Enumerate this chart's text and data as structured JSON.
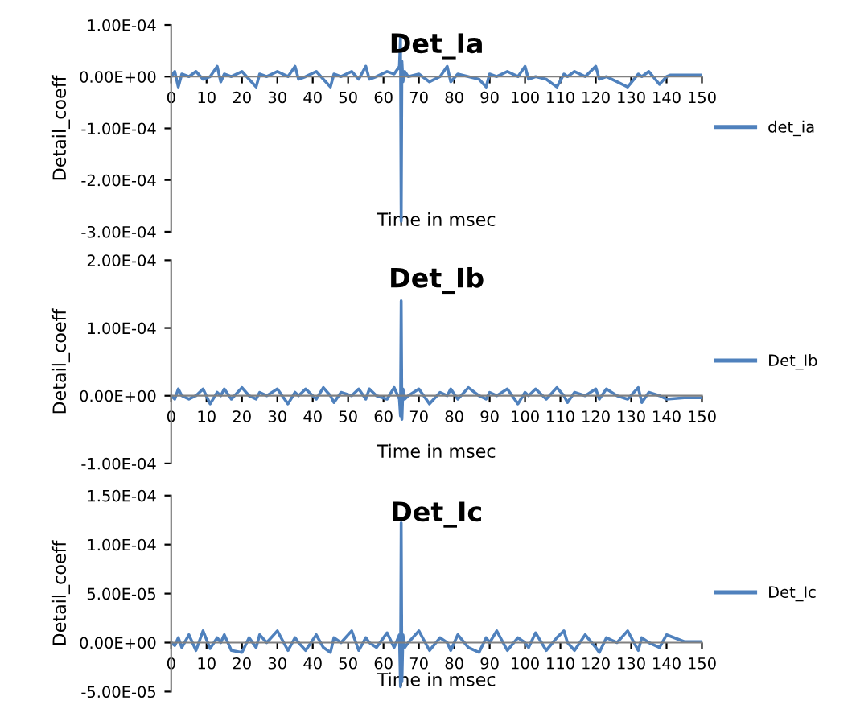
{
  "chart_data": [
    {
      "type": "line",
      "title": "Det_Ia",
      "xlabel": "Time in msec",
      "ylabel": "Detail_coeff",
      "legend": "right",
      "grid": false,
      "xlim": [
        0,
        150
      ],
      "xticks": [
        0,
        10,
        20,
        30,
        40,
        50,
        60,
        70,
        80,
        90,
        100,
        110,
        120,
        130,
        140,
        150
      ],
      "ylim": [
        -0.0003,
        0.0001
      ],
      "yticks": [
        {
          "value": -0.0003,
          "label": "-3.00E-04"
        },
        {
          "value": -0.0002,
          "label": "-2.00E-04"
        },
        {
          "value": -0.0001,
          "label": "-1.00E-04"
        },
        {
          "value": 0,
          "label": "0.00E+00"
        },
        {
          "value": 0.0001,
          "label": "1.00E-04"
        }
      ],
      "x": [
        0,
        1,
        2,
        3,
        5,
        7,
        9,
        11,
        13,
        14,
        15,
        17,
        20,
        22,
        24,
        25,
        27,
        30,
        33,
        35,
        36,
        38,
        41,
        43,
        45,
        46,
        48,
        51,
        53,
        55,
        56,
        58,
        61,
        63,
        64.5,
        64.8,
        65,
        65.2,
        65.5,
        66,
        67,
        70,
        73,
        76,
        78,
        79,
        81,
        84,
        87,
        89,
        90,
        92,
        95,
        98,
        100,
        101,
        103,
        106,
        109,
        111,
        112,
        114,
        117,
        120,
        121,
        123,
        126,
        129,
        132,
        133,
        135,
        138,
        140,
        141,
        150
      ],
      "series": [
        {
          "name": "det_ia",
          "color": "#4f81bd",
          "values": [
            0,
            1e-05,
            -2e-05,
            5e-06,
            0,
            1e-05,
            -5e-06,
            0,
            2e-05,
            -1e-05,
            5e-06,
            0,
            1e-05,
            -5e-06,
            -2e-05,
            5e-06,
            0,
            1e-05,
            0,
            2e-05,
            -5e-06,
            0,
            1e-05,
            -5e-06,
            -2e-05,
            5e-06,
            0,
            1e-05,
            -5e-06,
            2e-05,
            -5e-06,
            0,
            1e-05,
            5e-06,
            2e-05,
            7.5e-05,
            -0.00028,
            3e-05,
            -1e-05,
            1e-05,
            0,
            5e-06,
            -1e-05,
            0,
            2e-05,
            -1e-05,
            5e-06,
            0,
            -5e-06,
            -2e-05,
            5e-06,
            0,
            1e-05,
            0,
            2e-05,
            -5e-06,
            0,
            -5e-06,
            -2e-05,
            5e-06,
            0,
            1e-05,
            0,
            2e-05,
            -5e-06,
            0,
            -1e-05,
            -2e-05,
            5e-06,
            0,
            1e-05,
            -1.5e-05,
            0,
            3e-06,
            3e-06
          ]
        }
      ]
    },
    {
      "type": "line",
      "title": "Det_Ib",
      "xlabel": "Time in msec",
      "ylabel": "Detail_coeff",
      "legend": "right",
      "grid": false,
      "xlim": [
        0,
        150
      ],
      "xticks": [
        0,
        10,
        20,
        30,
        40,
        50,
        60,
        70,
        80,
        90,
        100,
        110,
        120,
        130,
        140,
        150
      ],
      "ylim": [
        -0.0001,
        0.0002
      ],
      "yticks": [
        {
          "value": -0.0001,
          "label": "-1.00E-04"
        },
        {
          "value": 0,
          "label": "0.00E+00"
        },
        {
          "value": 0.0001,
          "label": "1.00E-04"
        },
        {
          "value": 0.0002,
          "label": "2.00E-04"
        }
      ],
      "x": [
        0,
        1,
        2,
        3,
        5,
        7,
        9,
        11,
        13,
        14,
        15,
        17,
        20,
        22,
        24,
        25,
        27,
        30,
        33,
        35,
        36,
        38,
        41,
        43,
        45,
        46,
        48,
        51,
        53,
        55,
        56,
        58,
        61,
        63,
        64.5,
        64.8,
        65,
        65.2,
        65.5,
        66,
        67,
        70,
        73,
        76,
        78,
        79,
        81,
        84,
        87,
        89,
        90,
        92,
        95,
        98,
        100,
        101,
        103,
        106,
        109,
        111,
        112,
        114,
        117,
        120,
        121,
        123,
        126,
        129,
        132,
        133,
        135,
        138,
        140,
        145,
        150
      ],
      "series": [
        {
          "name": "Det_Ib",
          "color": "#4f81bd",
          "values": [
            0,
            -5e-06,
            1e-05,
            0,
            -5e-06,
            0,
            1e-05,
            -1.2e-05,
            5e-06,
            0,
            1e-05,
            -5e-06,
            1.2e-05,
            0,
            -5e-06,
            5e-06,
            0,
            1e-05,
            -1.2e-05,
            5e-06,
            0,
            1e-05,
            -5e-06,
            1.2e-05,
            0,
            -1e-05,
            5e-06,
            0,
            1e-05,
            -5e-06,
            1e-05,
            0,
            -5e-06,
            1.2e-05,
            -5e-06,
            -3e-05,
            0.00014,
            -3.5e-05,
            1e-05,
            -5e-06,
            0,
            1e-05,
            -1.2e-05,
            5e-06,
            0,
            1e-05,
            -5e-06,
            1.2e-05,
            0,
            -5e-06,
            5e-06,
            0,
            1e-05,
            -1.2e-05,
            5e-06,
            0,
            1e-05,
            -5e-06,
            1.2e-05,
            0,
            -1e-05,
            5e-06,
            0,
            1e-05,
            -5e-06,
            1e-05,
            0,
            -5e-06,
            1.2e-05,
            -1e-05,
            5e-06,
            0,
            -5e-06,
            -3e-06,
            -3e-06
          ]
        }
      ]
    },
    {
      "type": "line",
      "title": "Det_Ic",
      "xlabel": "Time in msec",
      "ylabel": "Detail_coeff",
      "legend": "right",
      "grid": false,
      "xlim": [
        0,
        150
      ],
      "xticks": [
        0,
        10,
        20,
        30,
        40,
        50,
        60,
        70,
        80,
        90,
        100,
        110,
        120,
        130,
        140,
        150
      ],
      "ylim": [
        -5e-05,
        0.00015
      ],
      "yticks": [
        {
          "value": -5e-05,
          "label": "-5.00E-05"
        },
        {
          "value": 0,
          "label": "0.00E+00"
        },
        {
          "value": 5e-05,
          "label": "5.00E-05"
        },
        {
          "value": 0.0001,
          "label": "1.00E-04"
        },
        {
          "value": 0.00015,
          "label": "1.50E-04"
        }
      ],
      "x": [
        0,
        1,
        2,
        3,
        5,
        7,
        9,
        11,
        13,
        14,
        15,
        17,
        20,
        22,
        24,
        25,
        27,
        30,
        33,
        35,
        36,
        38,
        41,
        43,
        45,
        46,
        48,
        51,
        53,
        55,
        56,
        58,
        61,
        63,
        64.5,
        64.8,
        65,
        65.2,
        65.5,
        66,
        67,
        70,
        73,
        76,
        78,
        79,
        81,
        84,
        87,
        89,
        90,
        92,
        95,
        98,
        100,
        101,
        103,
        106,
        109,
        111,
        112,
        114,
        117,
        120,
        121,
        123,
        126,
        129,
        132,
        133,
        135,
        138,
        140,
        145,
        150
      ],
      "series": [
        {
          "name": "Det_Ic",
          "color": "#4f81bd",
          "values": [
            0,
            -3e-06,
            5e-06,
            -5e-06,
            8e-06,
            -8e-06,
            1.2e-05,
            -6e-06,
            5e-06,
            0,
            8e-06,
            -8e-06,
            -1e-05,
            5e-06,
            -5e-06,
            8e-06,
            0,
            1.2e-05,
            -8e-06,
            5e-06,
            0,
            -8e-06,
            8e-06,
            -5e-06,
            -1e-05,
            5e-06,
            0,
            1.2e-05,
            -8e-06,
            5e-06,
            0,
            -5e-06,
            1e-05,
            -5e-06,
            8e-06,
            -4.5e-05,
            0.000122,
            -4e-05,
            8e-06,
            -5e-06,
            0,
            1.2e-05,
            -8e-06,
            5e-06,
            0,
            -8e-06,
            8e-06,
            -5e-06,
            -1e-05,
            5e-06,
            0,
            1.2e-05,
            -8e-06,
            5e-06,
            0,
            -5e-06,
            1e-05,
            -8e-06,
            5e-06,
            1.2e-05,
            0,
            -8e-06,
            8e-06,
            -5e-06,
            -1e-05,
            5e-06,
            0,
            1.2e-05,
            -8e-06,
            5e-06,
            0,
            -5e-06,
            8e-06,
            1e-06,
            1e-06
          ]
        }
      ]
    }
  ]
}
